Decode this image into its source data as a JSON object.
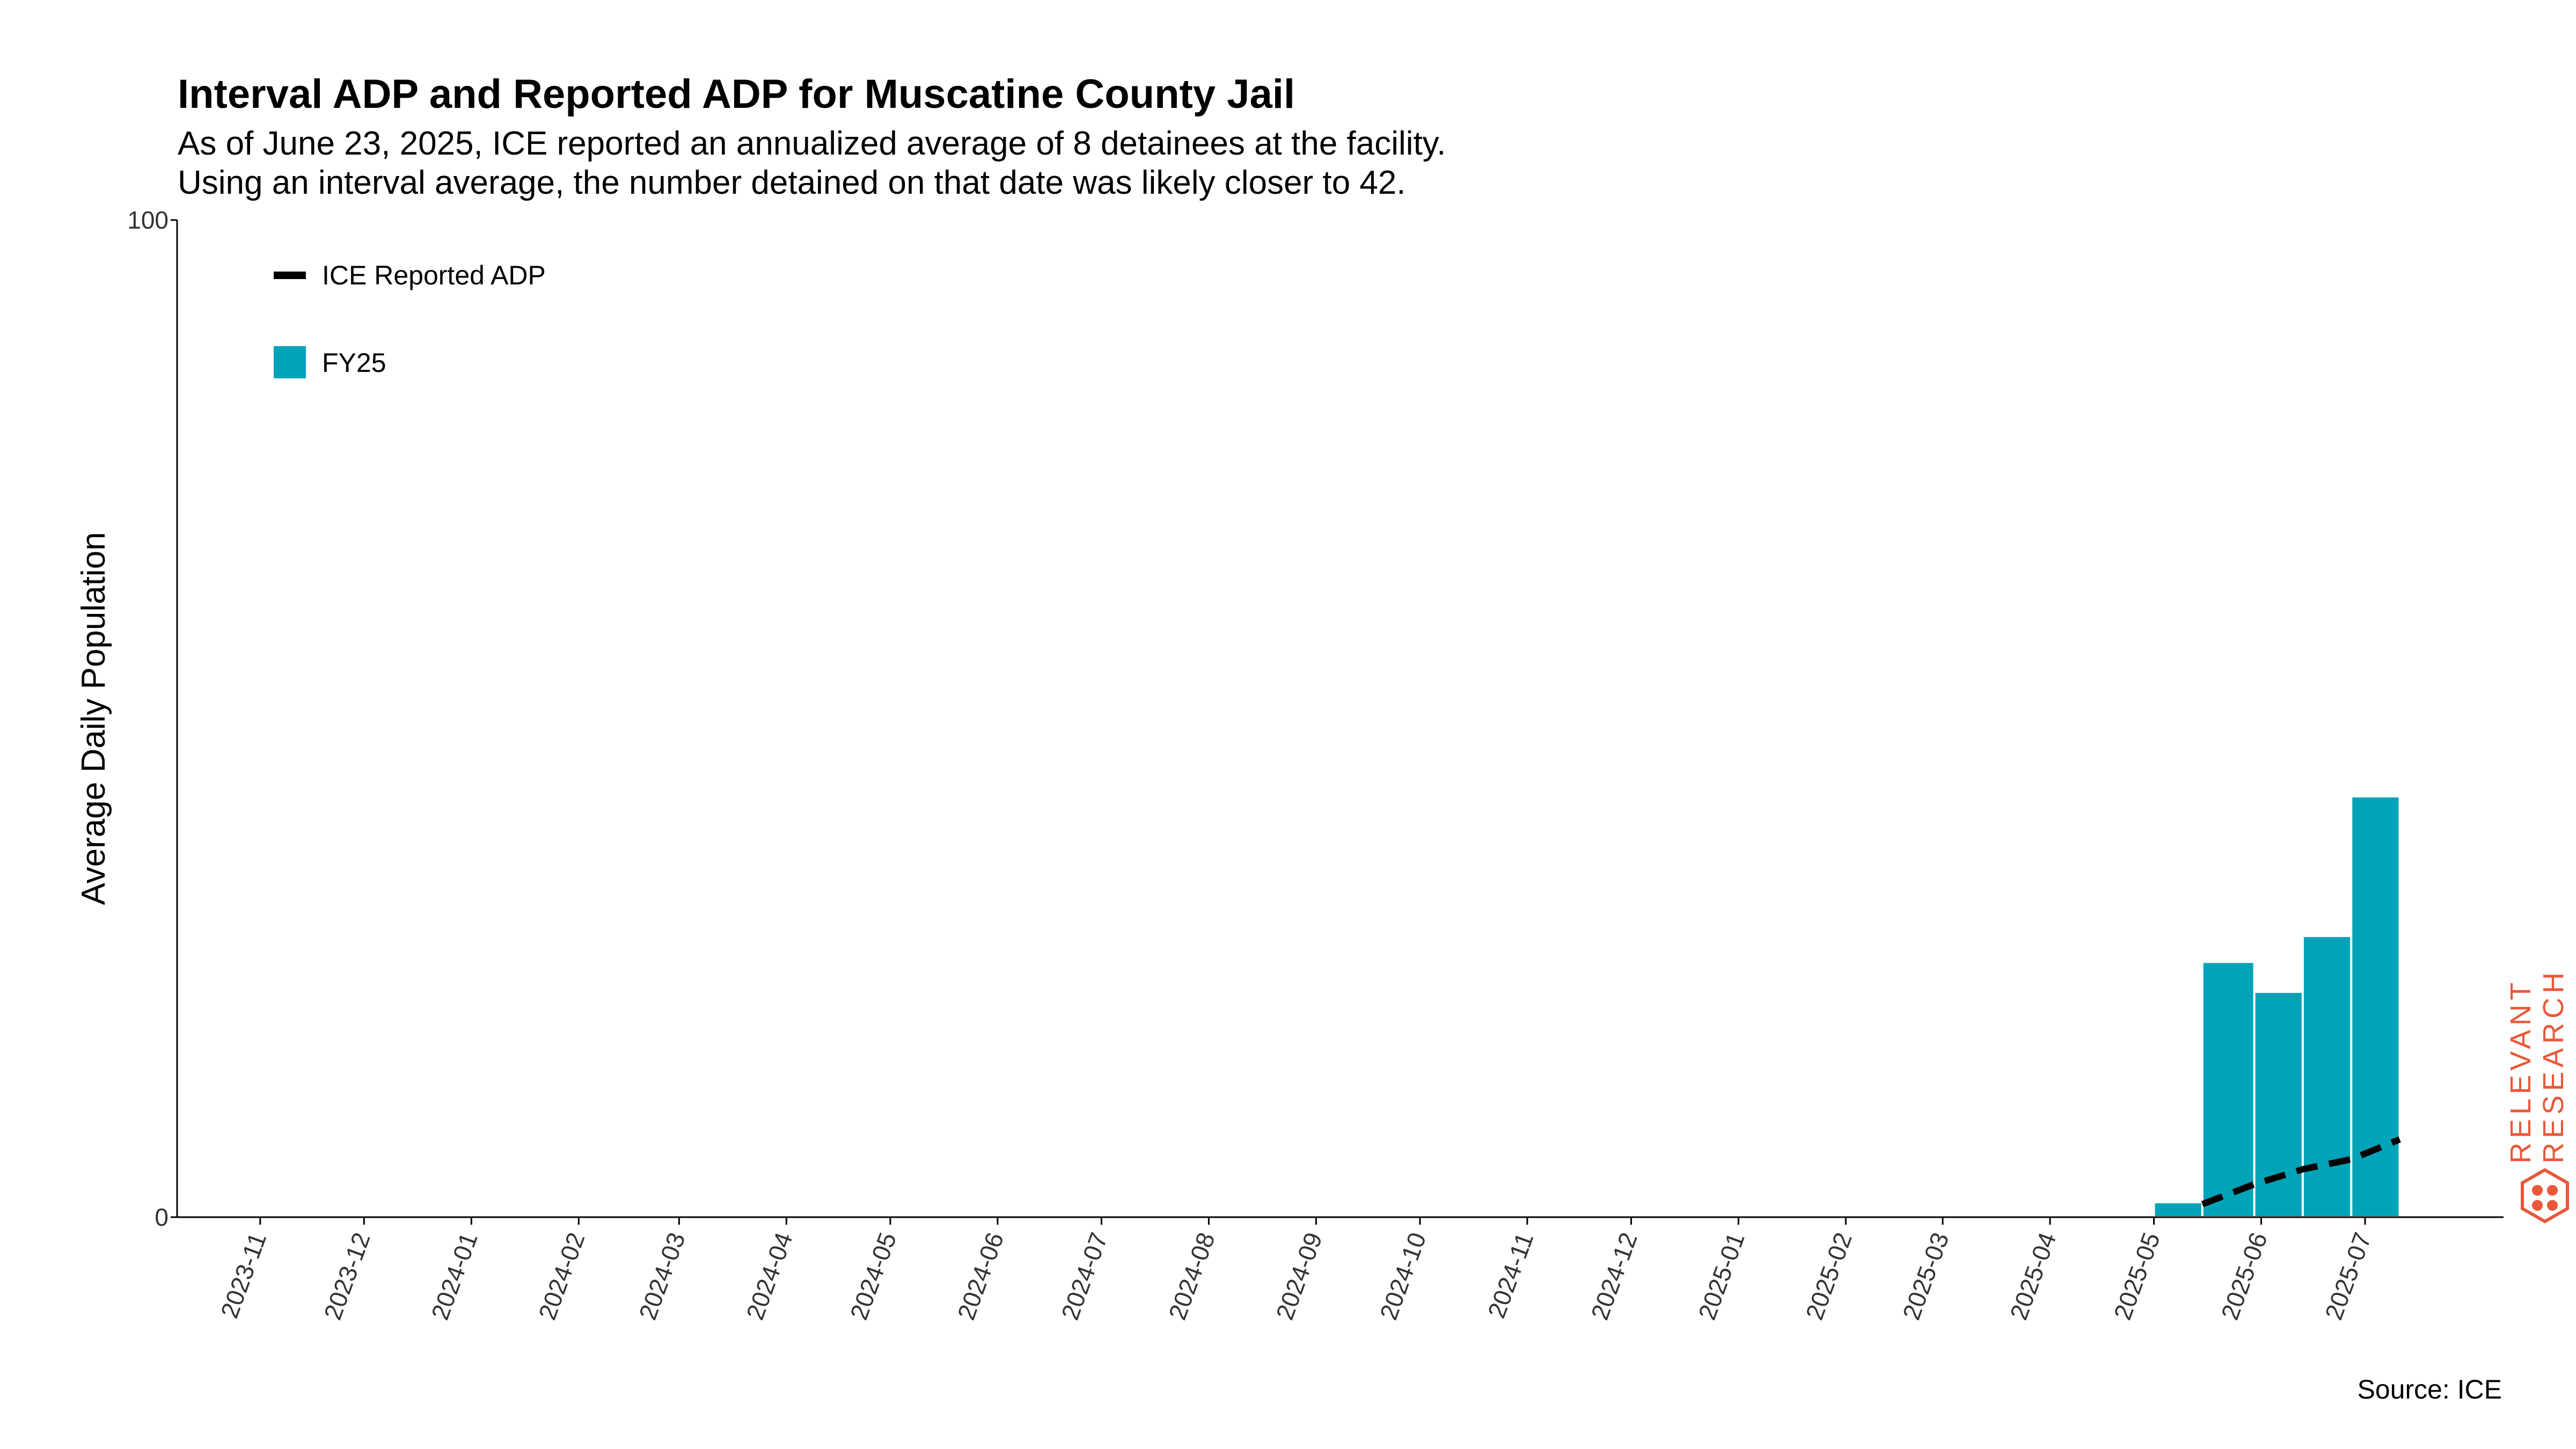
{
  "title": "Interval ADP and Reported ADP for Muscatine County Jail",
  "subtitle_lines": [
    "As of June 23, 2025, ICE reported an annualized average of 8 detainees at the facility.",
    "Using an interval average, the number detained on that date was likely closer to 42."
  ],
  "source": "Source: ICE",
  "brand": {
    "line1": "RELEVANT",
    "line2": "RESEARCH",
    "color": "#e8583a"
  },
  "chart_data": {
    "type": "bar",
    "ylabel": "Average Daily Population",
    "ylim": [
      0,
      100
    ],
    "yticks": [
      "0",
      "100"
    ],
    "x_ticks": [
      "2023-11",
      "2023-12",
      "2024-01",
      "2024-02",
      "2024-03",
      "2024-04",
      "2024-05",
      "2024-06",
      "2024-07",
      "2024-08",
      "2024-09",
      "2024-10",
      "2024-11",
      "2024-12",
      "2025-01",
      "2025-02",
      "2025-03",
      "2025-04",
      "2025-05",
      "2025-06",
      "2025-07"
    ],
    "x_range": [
      "2023-10-08",
      "2025-08-10"
    ],
    "grid": false,
    "legend_position": "top-left",
    "series": [
      {
        "name": "FY25",
        "kind": "bar",
        "color": "#00a3b8",
        "bars": [
          {
            "start": "2025-05-01",
            "end": "2025-05-15",
            "value": 1.5
          },
          {
            "start": "2025-05-15",
            "end": "2025-05-30",
            "value": 25.6
          },
          {
            "start": "2025-05-30",
            "end": "2025-06-13",
            "value": 22.6
          },
          {
            "start": "2025-06-13",
            "end": "2025-06-27",
            "value": 28.2
          },
          {
            "start": "2025-06-27",
            "end": "2025-07-11",
            "value": 42.2
          }
        ]
      },
      {
        "name": "ICE Reported ADP",
        "kind": "line",
        "color": "#000000",
        "dash": "dashed",
        "points": [
          {
            "date": "2025-05-15",
            "value": 1.3
          },
          {
            "date": "2025-05-30",
            "value": 3.3
          },
          {
            "date": "2025-06-13",
            "value": 4.8
          },
          {
            "date": "2025-06-27",
            "value": 5.8
          },
          {
            "date": "2025-07-11",
            "value": 7.8
          }
        ]
      }
    ]
  }
}
